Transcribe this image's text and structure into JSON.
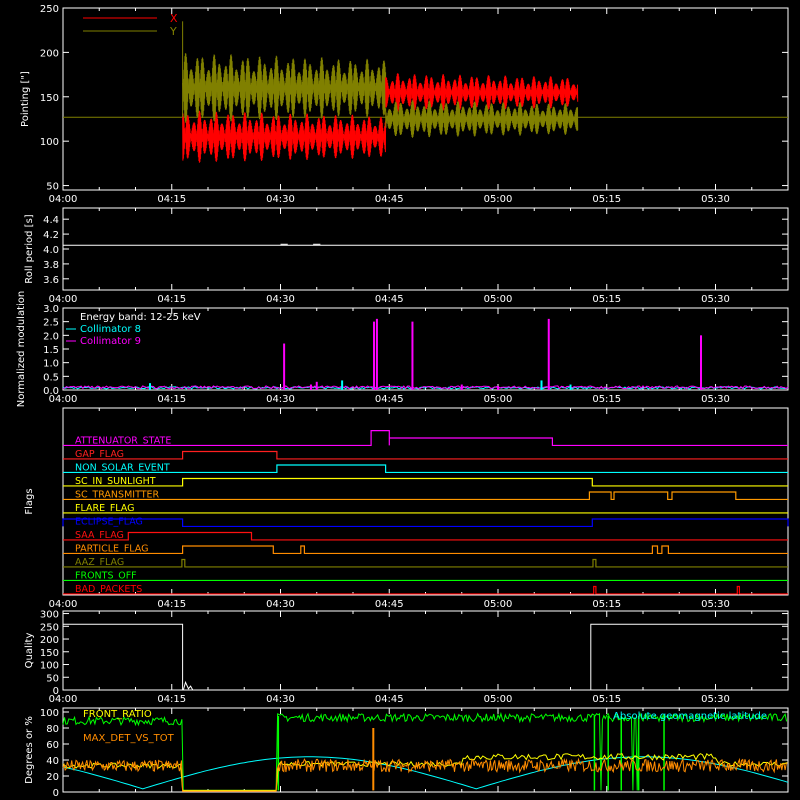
{
  "x_time_ticks": [
    "04:00",
    "04:15",
    "04:30",
    "04:45",
    "05:00",
    "05:15",
    "05:30"
  ],
  "x_range_minutes": [
    0,
    100
  ],
  "chart_data": [
    {
      "type": "line",
      "ylabel": "Pointing [\"]",
      "ylim": [
        45,
        250
      ],
      "yticks": [
        50,
        100,
        150,
        200,
        250
      ],
      "legend": {
        "placement": "top-left",
        "entries": [
          {
            "name": "X",
            "color": "#ff0000"
          },
          {
            "name": "Y",
            "color": "#808000"
          }
        ]
      },
      "baseline": 127,
      "segments": [
        {
          "t": [
            16.5,
            44.5
          ],
          "x_center": 105,
          "x_amp": 30,
          "y_center": 160,
          "y_amp": 40
        },
        {
          "t": [
            44.5,
            71
          ],
          "x_center": 155,
          "x_amp": 22,
          "y_center": 125,
          "y_amp": 22
        }
      ],
      "series_colors": {
        "x": "#ff0000",
        "y": "#808000"
      }
    },
    {
      "type": "line",
      "ylabel": "Roll period [s]",
      "ylim": [
        3.45,
        4.55
      ],
      "yticks": [
        3.6,
        3.8,
        4.0,
        4.2,
        4.4
      ],
      "series": [
        {
          "name": "",
          "color": "#ffffff",
          "value": 4.05,
          "t": [
            0,
            100
          ]
        }
      ]
    },
    {
      "type": "line",
      "ylabel": "Normalized modulation",
      "ylim": [
        0,
        3.0
      ],
      "yticks": [
        0.0,
        0.5,
        1.0,
        1.5,
        2.0,
        2.5,
        3.0
      ],
      "ytick_labels": [
        "0.0",
        "0.5",
        "1.0",
        "1.5",
        "2.0",
        "2.5",
        "3.0"
      ],
      "legend": {
        "placement": "top-left",
        "entries": [
          {
            "name": "Energy band: 12-25 keV",
            "color": "#ffffff"
          },
          {
            "name": "Collimator 8",
            "color": "#00ffff"
          },
          {
            "name": "Collimator 9",
            "color": "#ff00ff"
          }
        ]
      },
      "spikes_c9": [
        [
          30.5,
          1.7
        ],
        [
          34.2,
          0.2
        ],
        [
          35.0,
          0.3
        ],
        [
          42.9,
          2.5
        ],
        [
          43.3,
          2.6
        ],
        [
          48.2,
          2.5
        ],
        [
          67.0,
          2.6
        ],
        [
          88.0,
          2.0
        ],
        [
          55.0,
          0.2
        ],
        [
          60.0,
          0.15
        ]
      ],
      "spikes_c8": [
        [
          12.0,
          0.25
        ],
        [
          38.5,
          0.35
        ],
        [
          66.0,
          0.35
        ],
        [
          70.0,
          0.2
        ]
      ]
    },
    {
      "type": "line",
      "ylabel": "Flags",
      "flags": [
        {
          "name": "ATTENUATOR_STATE",
          "color": "#ff00ff",
          "high": [
            [
              42.5,
              45.0,
              2
            ],
            [
              45.0,
              67.5,
              1
            ]
          ]
        },
        {
          "name": "GAP_FLAG",
          "color": "#ff2020",
          "high": [
            [
              16.5,
              29.5,
              1
            ]
          ]
        },
        {
          "name": "NON_SOLAR_EVENT",
          "color": "#00ffff",
          "high": [
            [
              29.5,
              44.5,
              1
            ]
          ]
        },
        {
          "name": "SC_IN_SUNLIGHT",
          "color": "#ffff00",
          "high": [
            [
              16.5,
              73.0,
              1
            ]
          ]
        },
        {
          "name": "SC_TRANSMITTER",
          "color": "#ff9900",
          "high": [
            [
              72.6,
              75.6,
              1
            ],
            [
              76.0,
              83.4,
              1
            ],
            [
              84.0,
              92.8,
              1
            ]
          ]
        },
        {
          "name": "FLARE_FLAG",
          "color": "#ffff00",
          "high": []
        },
        {
          "name": "ECLIPSE_FLAG",
          "color": "#0000ff",
          "high": [
            [
              0,
              16.5,
              1
            ],
            [
              73.0,
              100,
              1
            ]
          ]
        },
        {
          "name": "SAA_FLAG",
          "color": "#ff1010",
          "high": [
            [
              9.0,
              26.0,
              1
            ]
          ]
        },
        {
          "name": "PARTICLE_FLAG",
          "color": "#ff8c00",
          "high": [
            [
              16.5,
              29.0,
              1
            ],
            [
              32.8,
              33.3,
              1
            ],
            [
              81.3,
              82.0,
              1
            ],
            [
              82.6,
              83.5,
              1
            ]
          ]
        },
        {
          "name": "AAZ_FLAG",
          "color": "#808000",
          "high": [
            [
              16.4,
              16.8,
              1
            ],
            [
              73.1,
              73.5,
              1
            ]
          ]
        },
        {
          "name": "FRONTS_OFF",
          "color": "#00ff00",
          "high": []
        },
        {
          "name": "BAD_PACKETS",
          "color": "#ff0000",
          "high": [
            [
              73.2,
              73.5,
              1
            ],
            [
              93.0,
              93.3,
              1
            ]
          ]
        }
      ]
    },
    {
      "type": "line",
      "ylabel": "Quality",
      "ylim": [
        0,
        310
      ],
      "yticks": [
        0,
        50,
        100,
        150,
        200,
        250,
        300
      ],
      "series": [
        {
          "name": "",
          "color": "#ffffff",
          "segments": [
            [
              0,
              16.5,
              258
            ],
            [
              16.5,
              72.8,
              0
            ],
            [
              72.8,
              100,
              258
            ]
          ]
        }
      ]
    },
    {
      "type": "line",
      "ylabel": "Degrees or %",
      "ylim": [
        0,
        105
      ],
      "yticks": [
        0,
        20,
        40,
        60,
        80,
        100
      ],
      "legend": {
        "placement": "top-left",
        "entries": [
          {
            "name": "FRONT_RATIO",
            "color": "#ffff00"
          },
          {
            "name": "MAX_DET_VS_TOT",
            "color": "#ff8c00"
          }
        ]
      },
      "annotation": {
        "text": "Absolute geomagnetic latitude",
        "color": "#00ffff",
        "placement": "top-right"
      },
      "colors": {
        "front_ratio": "#ffff00",
        "max_det": "#ff8c00",
        "green": "#00ff00",
        "lat": "#00ffff",
        "pink": "#ff80c0"
      }
    }
  ]
}
